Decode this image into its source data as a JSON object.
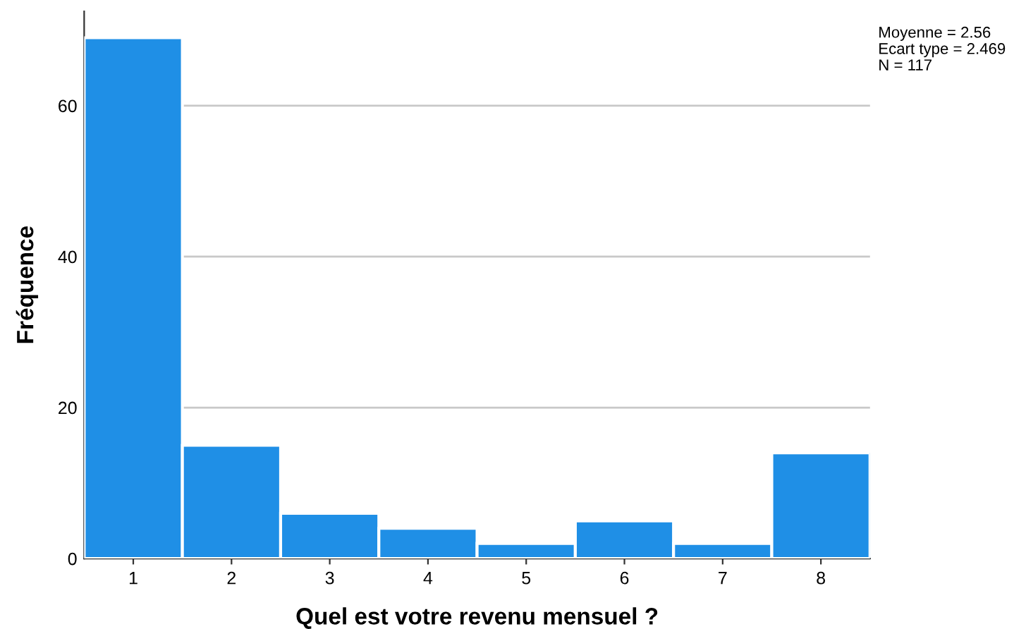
{
  "chart_data": {
    "type": "histogram",
    "xlabel": "Quel est votre revenu mensuel ?",
    "ylabel": "Fréquence",
    "bins": [
      0.5,
      1.5,
      2.5,
      3.5,
      4.5,
      5.5,
      6.5,
      7.5,
      8.5
    ],
    "values": [
      69,
      15,
      6,
      4,
      2,
      5,
      2,
      14
    ],
    "color": "#1f8fe6",
    "xlim": [
      0.5,
      8.5
    ],
    "xticks": [
      1,
      2,
      3,
      4,
      5,
      6,
      7,
      8
    ],
    "ylim": [
      0,
      72.5
    ],
    "yticks": [
      0,
      20,
      40,
      60
    ],
    "grid": "y",
    "annotations": [
      "Moyenne = 2.56",
      "Ecart type = 2.469",
      "N = 117"
    ]
  }
}
